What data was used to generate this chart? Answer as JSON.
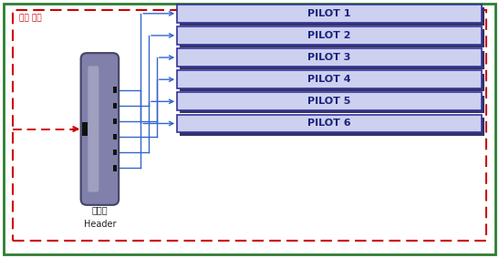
{
  "fig_width": 5.47,
  "fig_height": 2.83,
  "dpi": 100,
  "bg_color": "#ffffff",
  "outer_border_color": "#2e7d32",
  "dashed_rect_color": "#cc0000",
  "dashed_rect_label": "냉수 유입",
  "pilot_labels": [
    "PILOT 1",
    "PILOT 2",
    "PILOT 3",
    "PILOT 4",
    "PILOT 5",
    "PILOT 6"
  ],
  "pilot_box_fill": "#cdd0ee",
  "pilot_box_edge": "#333399",
  "pilot_box_shadow": "#333366",
  "pilot_text_color": "#1a237e",
  "header_label1": "분배용",
  "header_label2": "Header",
  "header_fill": "#8080aa",
  "header_edge": "#444466",
  "header_highlight": "#b0b0cc",
  "arrow_color": "#3366cc",
  "inlet_color": "#cc0000",
  "connector_color": "#111111"
}
